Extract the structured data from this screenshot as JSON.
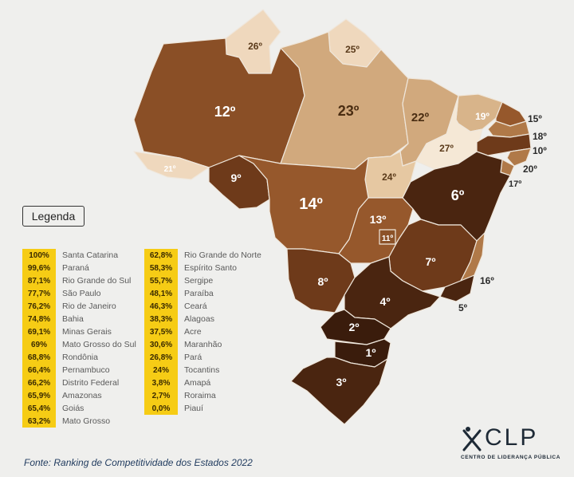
{
  "legend": {
    "title": "Legenda"
  },
  "ranking": [
    {
      "value": "100%",
      "state": "Santa Catarina"
    },
    {
      "value": "99,6%",
      "state": "Paraná"
    },
    {
      "value": "87,1%",
      "state": "Rio Grande do Sul"
    },
    {
      "value": "77,7%",
      "state": "São Paulo"
    },
    {
      "value": "76,2%",
      "state": "Rio de Janeiro"
    },
    {
      "value": "74,8%",
      "state": "Bahia"
    },
    {
      "value": "69,1%",
      "state": "Minas Gerais"
    },
    {
      "value": "69%",
      "state": "Mato Grosso do Sul"
    },
    {
      "value": "68,8%",
      "state": "Rondônia"
    },
    {
      "value": "66,4%",
      "state": "Pernambuco"
    },
    {
      "value": "66,2%",
      "state": "Distrito Federal"
    },
    {
      "value": "65,9%",
      "state": "Amazonas"
    },
    {
      "value": "65,4%",
      "state": "Goiás"
    },
    {
      "value": "63,2%",
      "state": "Mato Grosso"
    },
    {
      "value": "62,8%",
      "state": "Rio Grande do Norte"
    },
    {
      "value": "58,3%",
      "state": "Espírito Santo"
    },
    {
      "value": "55,7%",
      "state": "Sergipe"
    },
    {
      "value": "48,1%",
      "state": "Paraíba"
    },
    {
      "value": "46,3%",
      "state": "Ceará"
    },
    {
      "value": "38,3%",
      "state": "Alagoas"
    },
    {
      "value": "37,5%",
      "state": "Acre"
    },
    {
      "value": "30,6%",
      "state": "Maranhão"
    },
    {
      "value": "26,8%",
      "state": "Pará"
    },
    {
      "value": "24%",
      "state": "Tocantins"
    },
    {
      "value": "3,8%",
      "state": "Amapá"
    },
    {
      "value": "2,7%",
      "state": "Roraima"
    },
    {
      "value": "0,0%",
      "state": "Piauí"
    }
  ],
  "map_labels": {
    "RR": "26º",
    "AP": "25º",
    "AM": "12º",
    "PA": "23º",
    "MA": "22º",
    "CE": "19º",
    "RN": "15º",
    "PB": "18º",
    "PE": "10º",
    "AL": "20º",
    "SE": "17º",
    "PI": "27º",
    "TO": "24º",
    "BA": "6º",
    "AC": "21º",
    "RO": "9º",
    "MT": "14º",
    "GO": "13º",
    "DF": "11º",
    "MS": "8º",
    "MG": "7º",
    "ES": "16º",
    "RJ": "5º",
    "SP": "4º",
    "PR": "2º",
    "SC": "1º",
    "RS": "3º"
  },
  "colors": {
    "rank_1_5": "#4a2510",
    "rank_6_10": "#6e3a1a",
    "rank_11_15": "#96582c",
    "rank_16_20": "#b07948",
    "rank_21_24": "#d1a97d",
    "rank_25_27": "#efd8bd",
    "legend_highlight": "#f6cc15"
  },
  "source": "Fonte: Ranking de Competitividade dos Estados 2022",
  "logo": {
    "name": "CLP",
    "subtitle": "CENTRO DE LIDERANÇA PÚBLICA"
  }
}
